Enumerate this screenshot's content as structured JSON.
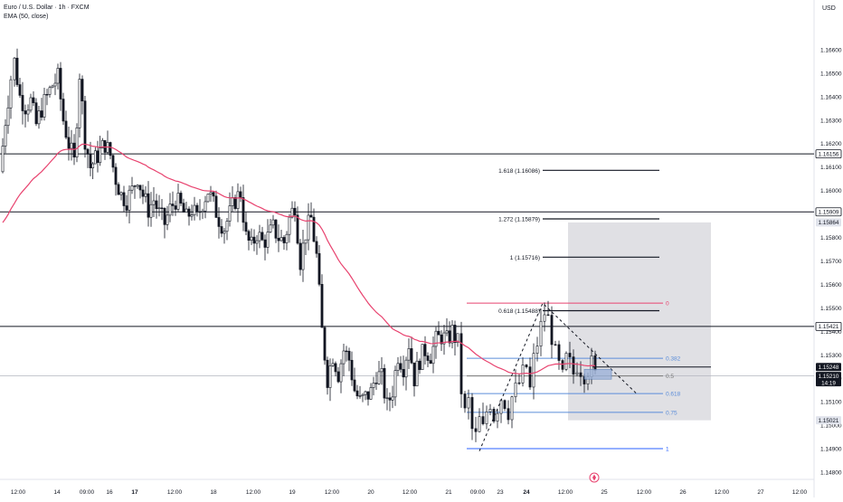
{
  "header": {
    "symbol_line": "Euro / U.S. Dollar · 1h · FXCM",
    "indicator_line": "EMA (50, close)"
  },
  "chart_data": {
    "type": "candlestick",
    "currency": "USD",
    "ylim": [
      1.148,
      1.1675
    ],
    "y_ticks": [
      "1.16600",
      "1.16500",
      "1.16400",
      "1.16300",
      "1.16200",
      "1.16100",
      "1.16000",
      "1.15900",
      "1.15800",
      "1.15700",
      "1.15600",
      "1.15500",
      "1.15400",
      "1.15300",
      "1.15200",
      "1.15100",
      "1.15000",
      "1.14900",
      "1.14800"
    ],
    "x_ticks": [
      "12:00",
      "14",
      "09:00",
      "16",
      "17",
      "12:00",
      "18",
      "12:00",
      "19",
      "12:00",
      "20",
      "12:00",
      "21",
      "09:00",
      "23",
      "24",
      "12:00",
      "25",
      "12:00",
      "26",
      "12:00",
      "27",
      "12:00"
    ],
    "horizontal_levels": [
      {
        "price": 1.16156,
        "label": "1.16156"
      },
      {
        "price": 1.15909,
        "label": "1.15909"
      },
      {
        "price": 1.15421,
        "label": "1.15421"
      }
    ],
    "price_tags": [
      {
        "price": 1.15864,
        "label": "1.15864",
        "style": "grey"
      },
      {
        "price": 1.15248,
        "label": "1.15248",
        "style": "dark"
      },
      {
        "price": 1.1521,
        "label": "1.15210",
        "sub": "14:19",
        "style": "dark"
      },
      {
        "price": 1.15021,
        "label": "1.15021",
        "style": "grey"
      }
    ],
    "fib_extension": [
      {
        "label": "1.618 (1.16086)",
        "price": 1.16086
      },
      {
        "label": "1.272 (1.15879)",
        "price": 1.15879
      },
      {
        "label": "1 (1.15716)",
        "price": 1.15716
      },
      {
        "label": "0.618 (1.15488)",
        "price": 1.15488
      }
    ],
    "fib_retracement": [
      {
        "label": "0",
        "price": 1.1552,
        "color": "#e8436f"
      },
      {
        "label": "0.382",
        "price": 1.15285,
        "color": "#5b8dd9"
      },
      {
        "label": "0.5",
        "price": 1.1521,
        "color": "#777777"
      },
      {
        "label": "0.618",
        "price": 1.15135,
        "color": "#5b8dd9"
      },
      {
        "label": "0.75",
        "price": 1.15055,
        "color": "#5b8dd9"
      },
      {
        "label": "1",
        "price": 1.149,
        "color": "#2962ff"
      }
    ],
    "zone": {
      "top": 1.15864,
      "bottom": 1.15021
    },
    "zigzag": [
      {
        "t": 0,
        "price": 1.1489
      },
      {
        "t": 1,
        "price": 1.1552
      },
      {
        "t": 2,
        "price": 1.1513
      }
    ],
    "ema_label": "EMA (50, close)",
    "ema_color": "#e8436f",
    "up_color": "#131722",
    "down_color": "#131722"
  }
}
